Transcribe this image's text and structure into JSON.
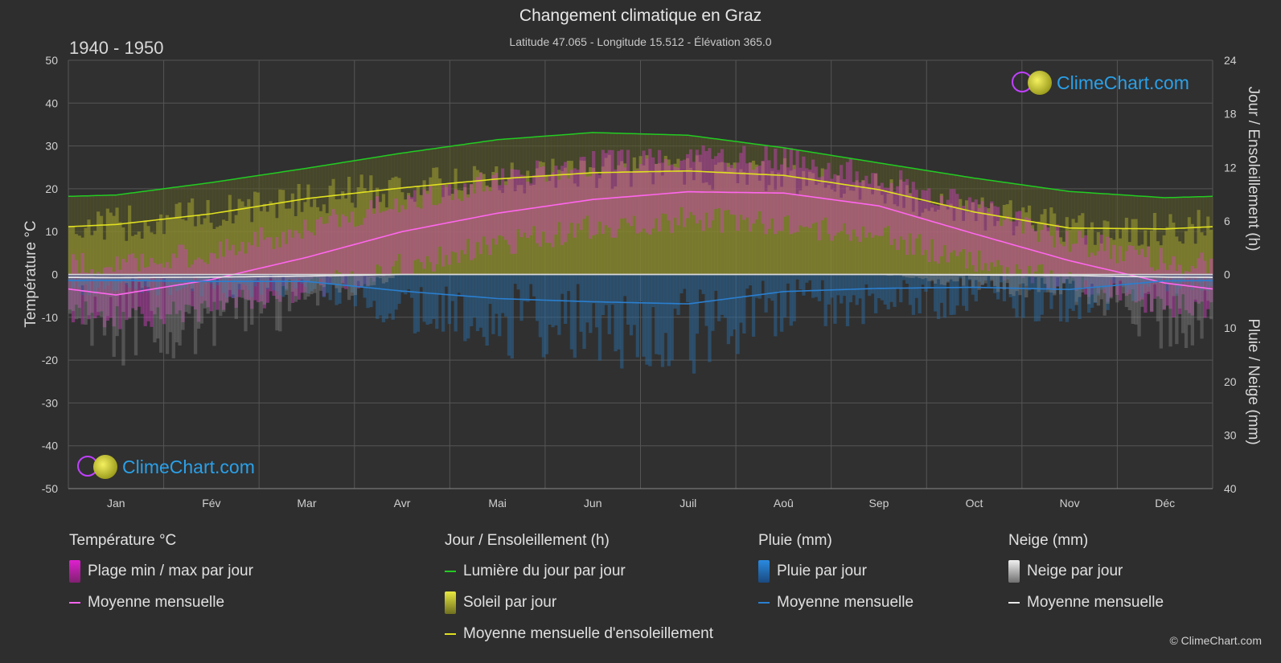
{
  "header": {
    "title": "Changement climatique en Graz",
    "subtitle": "Latitude 47.065 - Longitude 15.512 - Élévation 365.0",
    "period": "1940 - 1950"
  },
  "logo": {
    "text": "ClimeChart.com"
  },
  "copyright": "© ClimeChart.com",
  "chart_data": {
    "type": "line",
    "months": [
      "Jan",
      "Fév",
      "Mar",
      "Avr",
      "Mai",
      "Jun",
      "Juil",
      "Aoû",
      "Sep",
      "Oct",
      "Nov",
      "Déc"
    ],
    "y_left": {
      "label": "Température °C",
      "ylim": [
        -50,
        50
      ],
      "ticks": [
        50,
        40,
        30,
        20,
        10,
        0,
        -10,
        -20,
        -30,
        -40,
        -50
      ]
    },
    "y_right_top": {
      "label": "Jour / Ensoleillement (h)",
      "ylim": [
        0,
        24
      ],
      "ticks": [
        24,
        18,
        12,
        6,
        0
      ]
    },
    "y_right_bottom": {
      "label": "Pluie / Neige (mm)",
      "ylim": [
        0,
        40
      ],
      "ticks": [
        0,
        10,
        20,
        30,
        40
      ]
    },
    "grid": true,
    "series": [
      {
        "name": "Lumière du jour par jour",
        "unit": "h",
        "color": "#22cc22",
        "values": [
          8.9,
          10.3,
          11.9,
          13.6,
          15.1,
          15.9,
          15.6,
          14.2,
          12.5,
          10.8,
          9.3,
          8.6
        ]
      },
      {
        "name": "Moyenne mensuelle d'ensoleillement",
        "unit": "h",
        "color": "#e0e020",
        "values": [
          5.6,
          6.8,
          8.5,
          9.7,
          10.7,
          11.4,
          11.6,
          11.1,
          9.5,
          7.0,
          5.2,
          5.1
        ]
      },
      {
        "name": "Moyenne mensuelle",
        "group": "Température °C",
        "unit": "°C",
        "color": "#ff66ee",
        "values": [
          -4.8,
          -1.2,
          4.0,
          10.0,
          14.3,
          17.5,
          19.3,
          19.0,
          16.0,
          9.5,
          3.2,
          -2.0
        ]
      },
      {
        "name": "Moyenne mensuelle",
        "group": "Pluie (mm)",
        "unit": "mm",
        "color": "#2a7fd0",
        "values": [
          1.1,
          1.3,
          1.3,
          3.1,
          4.5,
          5.1,
          5.5,
          3.2,
          2.6,
          2.4,
          2.8,
          1.2
        ]
      },
      {
        "name": "Moyenne mensuelle",
        "group": "Neige (mm)",
        "unit": "mm",
        "color": "#e8e8e8",
        "values": [
          0.6,
          0.5,
          0.3,
          0.0,
          0.0,
          0.0,
          0.0,
          0.0,
          0.0,
          0.1,
          0.2,
          0.5
        ]
      }
    ],
    "temp_range": {
      "name": "Plage min / max par jour",
      "min": [
        -10,
        -8,
        -3,
        2,
        7,
        11,
        13,
        12,
        9,
        3,
        -2,
        -7
      ],
      "max": [
        2,
        5,
        11,
        17,
        22,
        26,
        28,
        27,
        23,
        16,
        8,
        3
      ]
    }
  },
  "legend": {
    "temperature": {
      "title": "Température °C",
      "range": "Plage min / max par jour",
      "mean": "Moyenne mensuelle",
      "range_color": "#e020d0",
      "mean_color": "#ff66ee"
    },
    "sun": {
      "title": "Jour / Ensoleillement (h)",
      "daylight": "Lumière du jour par jour",
      "sun": "Soleil par jour",
      "sun_mean": "Moyenne mensuelle d'ensoleillement",
      "daylight_color": "#22cc22",
      "sun_color": "#d8d830",
      "sun_mean_color": "#e0e020"
    },
    "rain": {
      "title": "Pluie (mm)",
      "daily": "Pluie par jour",
      "mean": "Moyenne mensuelle",
      "color": "#2a7fd0"
    },
    "snow": {
      "title": "Neige (mm)",
      "daily": "Neige par jour",
      "mean": "Moyenne mensuelle",
      "color": "#e8e8e8"
    }
  }
}
